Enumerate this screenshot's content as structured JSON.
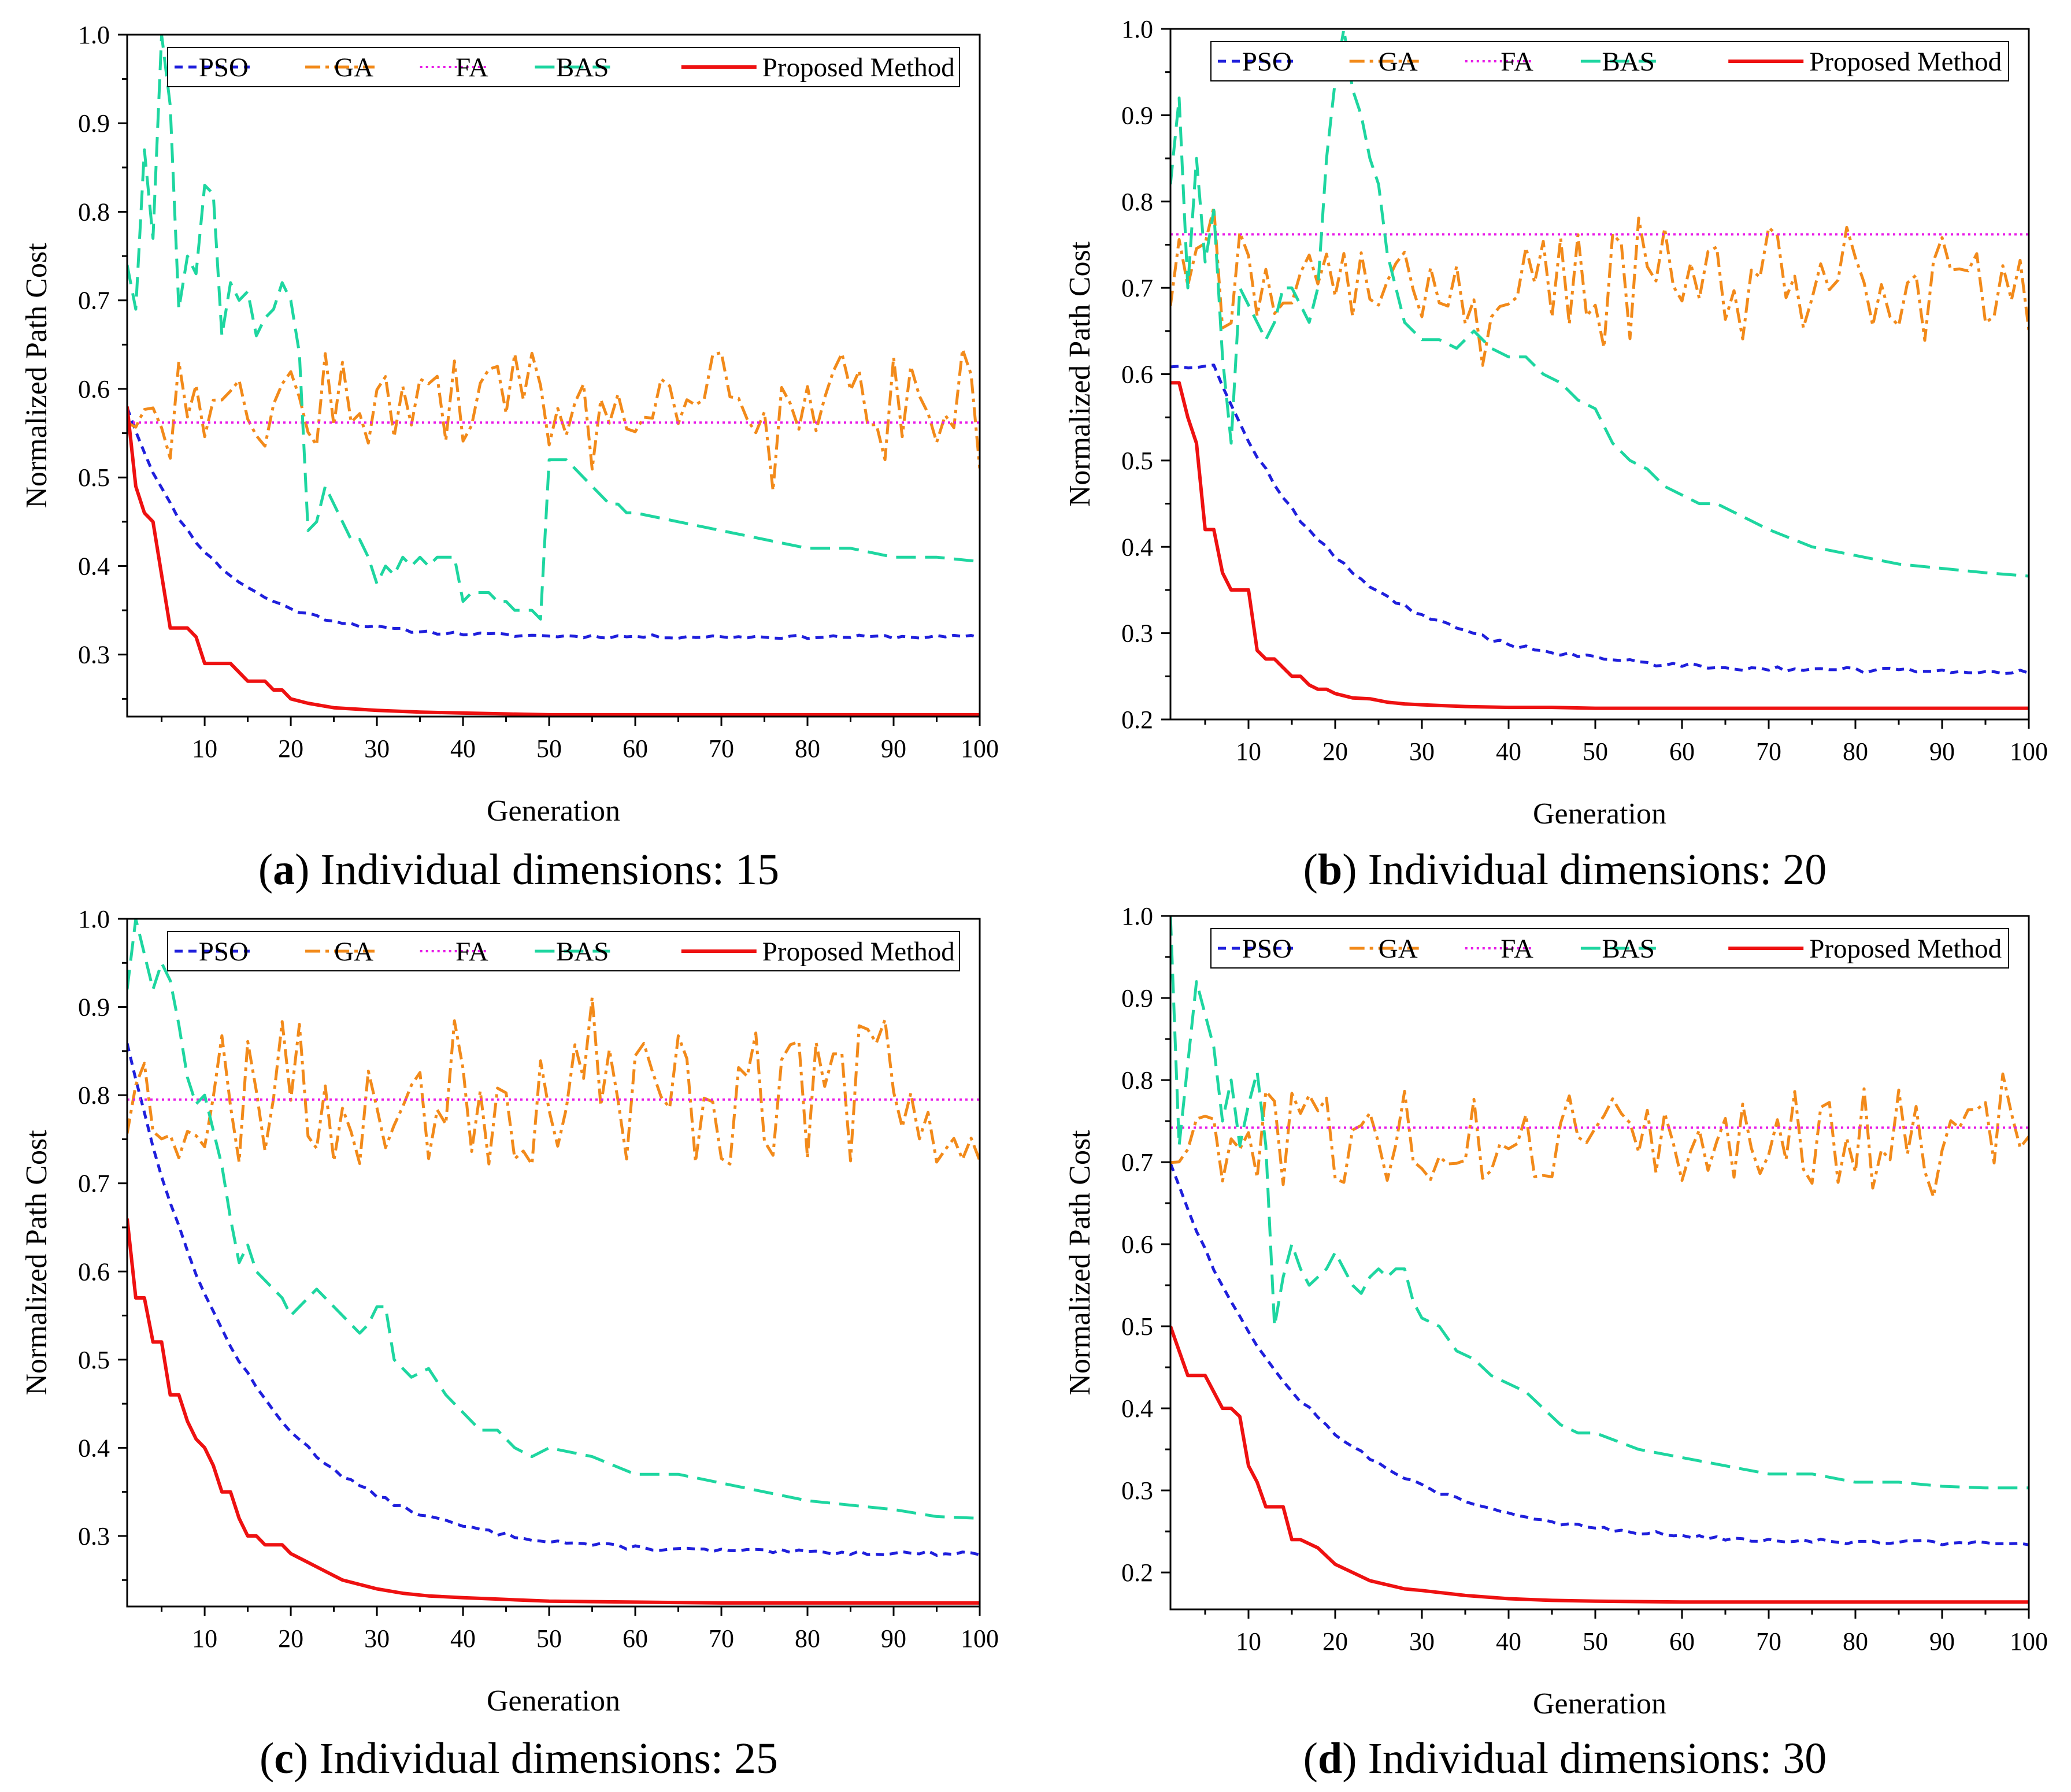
{
  "colors": {
    "PSO": "#1f1fdc",
    "GA": "#f28a1a",
    "FA": "#e81be8",
    "BAS": "#1ed6a0",
    "Proposed Method": "#ee1111"
  },
  "legend_labels": [
    "PSO",
    "GA",
    "FA",
    "BAS",
    "Proposed Method"
  ],
  "chart_data": [
    {
      "type": "line",
      "caption_letter": "a",
      "caption_text": "Individual dimensions: 15",
      "xlabel": "Generation",
      "ylabel": "Normalized Path Cost",
      "xlim": [
        1,
        100
      ],
      "ylim": [
        0.23,
        1.0
      ],
      "xticks": [
        10,
        20,
        30,
        40,
        50,
        60,
        70,
        80,
        90,
        100
      ],
      "yticks": [
        0.3,
        0.4,
        0.5,
        0.6,
        0.7,
        0.8,
        0.9,
        1.0
      ],
      "ytick_labels": [
        "0.3",
        "0.4",
        "0.5",
        "0.6",
        "0.7",
        "0.8",
        "0.9",
        "1.0"
      ],
      "series": [
        {
          "name": "PSO",
          "kind": "decay",
          "start": 0.58,
          "end": 0.32,
          "rate": 0.11,
          "noise": 0.004,
          "plateau": 0.0,
          "seed": 11
        },
        {
          "name": "GA",
          "kind": "noise",
          "mean": 0.59,
          "amp": 0.055,
          "seed": 21
        },
        {
          "name": "FA",
          "kind": "flat",
          "value": 0.562
        },
        {
          "name": "BAS",
          "kind": "points",
          "x": [
            1,
            2,
            3,
            4,
            5,
            6,
            7,
            8,
            9,
            10,
            11,
            12,
            13,
            14,
            15,
            16,
            17,
            18,
            19,
            20,
            21,
            22,
            23,
            24,
            25,
            26,
            27,
            28,
            29,
            30,
            31,
            32,
            33,
            34,
            35,
            36,
            37,
            38,
            39,
            40,
            41,
            42,
            43,
            44,
            45,
            46,
            47,
            48,
            49,
            50,
            51,
            52,
            53,
            54,
            55,
            56,
            57,
            58,
            59,
            60,
            65,
            70,
            75,
            80,
            85,
            90,
            95,
            100
          ],
          "y": [
            0.74,
            0.69,
            0.87,
            0.77,
            1.0,
            0.92,
            0.69,
            0.75,
            0.73,
            0.83,
            0.82,
            0.66,
            0.72,
            0.7,
            0.71,
            0.66,
            0.68,
            0.69,
            0.72,
            0.7,
            0.64,
            0.44,
            0.45,
            0.49,
            0.47,
            0.45,
            0.43,
            0.43,
            0.41,
            0.38,
            0.4,
            0.39,
            0.41,
            0.4,
            0.41,
            0.4,
            0.41,
            0.41,
            0.41,
            0.36,
            0.37,
            0.37,
            0.37,
            0.36,
            0.36,
            0.35,
            0.35,
            0.35,
            0.34,
            0.52,
            0.52,
            0.52,
            0.51,
            0.5,
            0.49,
            0.48,
            0.47,
            0.47,
            0.46,
            0.46,
            0.45,
            0.44,
            0.43,
            0.42,
            0.42,
            0.41,
            0.41,
            0.405
          ]
        },
        {
          "name": "Proposed Method",
          "kind": "points",
          "x": [
            1,
            2,
            3,
            4,
            5,
            6,
            7,
            8,
            9,
            10,
            11,
            12,
            13,
            14,
            15,
            16,
            17,
            18,
            19,
            20,
            22,
            25,
            30,
            35,
            40,
            45,
            50,
            60,
            70,
            80,
            90,
            100
          ],
          "y": [
            0.58,
            0.49,
            0.46,
            0.45,
            0.39,
            0.33,
            0.33,
            0.33,
            0.32,
            0.29,
            0.29,
            0.29,
            0.29,
            0.28,
            0.27,
            0.27,
            0.27,
            0.26,
            0.26,
            0.25,
            0.245,
            0.24,
            0.237,
            0.235,
            0.234,
            0.233,
            0.232,
            0.232,
            0.232,
            0.232,
            0.232,
            0.232
          ]
        }
      ]
    },
    {
      "type": "line",
      "caption_letter": "b",
      "caption_text": "Individual dimensions: 20",
      "xlabel": "Generation",
      "ylabel": "Normalized Path Cost",
      "xlim": [
        1,
        100
      ],
      "ylim": [
        0.2,
        1.0
      ],
      "xticks": [
        10,
        20,
        30,
        40,
        50,
        60,
        70,
        80,
        90,
        100
      ],
      "yticks": [
        0.2,
        0.3,
        0.4,
        0.5,
        0.6,
        0.7,
        0.8,
        0.9,
        1.0
      ],
      "ytick_labels": [
        "0.2",
        "0.3",
        "0.4",
        "0.5",
        "0.6",
        "0.7",
        "0.8",
        "0.9",
        "1.0"
      ],
      "series": [
        {
          "name": "PSO",
          "kind": "decay",
          "start": 0.61,
          "end": 0.255,
          "rate": 0.07,
          "noise": 0.006,
          "plateau": 5,
          "seed": 12
        },
        {
          "name": "GA",
          "kind": "noise",
          "mean": 0.71,
          "amp": 0.06,
          "seed": 22
        },
        {
          "name": "FA",
          "kind": "flat",
          "value": 0.762
        },
        {
          "name": "BAS",
          "kind": "points",
          "x": [
            1,
            2,
            3,
            4,
            5,
            6,
            7,
            8,
            9,
            10,
            11,
            12,
            13,
            14,
            15,
            16,
            17,
            18,
            19,
            20,
            21,
            22,
            23,
            24,
            25,
            26,
            27,
            28,
            30,
            32,
            34,
            36,
            38,
            40,
            42,
            44,
            46,
            48,
            50,
            52,
            54,
            56,
            58,
            60,
            62,
            64,
            66,
            68,
            70,
            75,
            80,
            85,
            90,
            95,
            100
          ],
          "y": [
            0.82,
            0.92,
            0.7,
            0.85,
            0.73,
            0.79,
            0.62,
            0.52,
            0.7,
            0.68,
            0.66,
            0.64,
            0.66,
            0.7,
            0.7,
            0.68,
            0.66,
            0.7,
            0.85,
            0.94,
            1.0,
            0.93,
            0.9,
            0.85,
            0.82,
            0.74,
            0.7,
            0.66,
            0.64,
            0.64,
            0.63,
            0.65,
            0.63,
            0.62,
            0.62,
            0.6,
            0.59,
            0.57,
            0.56,
            0.52,
            0.5,
            0.49,
            0.47,
            0.46,
            0.45,
            0.45,
            0.44,
            0.43,
            0.42,
            0.4,
            0.39,
            0.38,
            0.375,
            0.37,
            0.366
          ]
        },
        {
          "name": "Proposed Method",
          "kind": "points",
          "x": [
            1,
            2,
            3,
            4,
            5,
            6,
            7,
            8,
            9,
            10,
            11,
            12,
            13,
            14,
            15,
            16,
            17,
            18,
            19,
            20,
            22,
            24,
            26,
            28,
            30,
            35,
            40,
            45,
            50,
            60,
            70,
            80,
            90,
            100
          ],
          "y": [
            0.59,
            0.59,
            0.55,
            0.52,
            0.42,
            0.42,
            0.37,
            0.35,
            0.35,
            0.35,
            0.28,
            0.27,
            0.27,
            0.26,
            0.25,
            0.25,
            0.24,
            0.235,
            0.235,
            0.23,
            0.225,
            0.224,
            0.22,
            0.218,
            0.217,
            0.215,
            0.214,
            0.214,
            0.213,
            0.213,
            0.213,
            0.213,
            0.213,
            0.213
          ]
        }
      ]
    },
    {
      "type": "line",
      "caption_letter": "c",
      "caption_text": "Individual dimensions: 25",
      "xlabel": "Generation",
      "ylabel": "Normalized Path Cost",
      "xlim": [
        1,
        100
      ],
      "ylim": [
        0.22,
        1.0
      ],
      "xticks": [
        10,
        20,
        30,
        40,
        50,
        60,
        70,
        80,
        90,
        100
      ],
      "yticks": [
        0.3,
        0.4,
        0.5,
        0.6,
        0.7,
        0.8,
        0.9,
        1.0
      ],
      "ytick_labels": [
        "0.3",
        "0.4",
        "0.5",
        "0.6",
        "0.7",
        "0.8",
        "0.9",
        "1.0"
      ],
      "series": [
        {
          "name": "PSO",
          "kind": "decay",
          "start": 0.86,
          "end": 0.28,
          "rate": 0.075,
          "noise": 0.005,
          "plateau": 0.0,
          "seed": 13
        },
        {
          "name": "GA",
          "kind": "noise",
          "mean": 0.8,
          "amp": 0.085,
          "seed": 23
        },
        {
          "name": "FA",
          "kind": "flat",
          "value": 0.795
        },
        {
          "name": "BAS",
          "kind": "points",
          "x": [
            1,
            2,
            3,
            4,
            5,
            6,
            7,
            8,
            9,
            10,
            11,
            12,
            13,
            14,
            15,
            16,
            17,
            18,
            19,
            20,
            21,
            22,
            23,
            24,
            25,
            26,
            27,
            28,
            29,
            30,
            31,
            32,
            34,
            36,
            38,
            40,
            42,
            44,
            46,
            48,
            50,
            55,
            60,
            65,
            70,
            75,
            80,
            85,
            90,
            95,
            100
          ],
          "y": [
            0.92,
            1.0,
            0.96,
            0.92,
            0.95,
            0.93,
            0.88,
            0.82,
            0.79,
            0.8,
            0.76,
            0.72,
            0.66,
            0.61,
            0.63,
            0.6,
            0.59,
            0.58,
            0.57,
            0.55,
            0.56,
            0.57,
            0.58,
            0.57,
            0.56,
            0.55,
            0.54,
            0.53,
            0.54,
            0.56,
            0.56,
            0.5,
            0.48,
            0.49,
            0.46,
            0.44,
            0.42,
            0.42,
            0.4,
            0.39,
            0.4,
            0.39,
            0.37,
            0.37,
            0.36,
            0.35,
            0.34,
            0.335,
            0.33,
            0.322,
            0.32
          ]
        },
        {
          "name": "Proposed Method",
          "kind": "points",
          "x": [
            1,
            2,
            3,
            4,
            5,
            6,
            7,
            8,
            9,
            10,
            11,
            12,
            13,
            14,
            15,
            16,
            17,
            18,
            19,
            20,
            22,
            24,
            26,
            28,
            30,
            33,
            36,
            40,
            45,
            50,
            60,
            70,
            80,
            90,
            100
          ],
          "y": [
            0.66,
            0.57,
            0.57,
            0.52,
            0.52,
            0.46,
            0.46,
            0.43,
            0.41,
            0.4,
            0.38,
            0.35,
            0.35,
            0.32,
            0.3,
            0.3,
            0.29,
            0.29,
            0.29,
            0.28,
            0.27,
            0.26,
            0.25,
            0.245,
            0.24,
            0.235,
            0.232,
            0.23,
            0.228,
            0.226,
            0.225,
            0.224,
            0.224,
            0.224,
            0.224
          ]
        }
      ]
    },
    {
      "type": "line",
      "caption_letter": "d",
      "caption_text": "Individual dimensions: 30",
      "xlabel": "Generation",
      "ylabel": "Normalized Path Cost",
      "xlim": [
        1,
        100
      ],
      "ylim": [
        0.155,
        1.0
      ],
      "xticks": [
        10,
        20,
        30,
        40,
        50,
        60,
        70,
        80,
        90,
        100
      ],
      "yticks": [
        0.2,
        0.3,
        0.4,
        0.5,
        0.6,
        0.7,
        0.8,
        0.9,
        1.0
      ],
      "ytick_labels": [
        "0.2",
        "0.3",
        "0.4",
        "0.5",
        "0.6",
        "0.7",
        "0.8",
        "0.9",
        "1.0"
      ],
      "series": [
        {
          "name": "PSO",
          "kind": "decay",
          "start": 0.7,
          "end": 0.235,
          "rate": 0.065,
          "noise": 0.006,
          "plateau": 0.0,
          "seed": 14
        },
        {
          "name": "GA",
          "kind": "noise",
          "mean": 0.73,
          "amp": 0.06,
          "seed": 24
        },
        {
          "name": "FA",
          "kind": "flat",
          "value": 0.742
        },
        {
          "name": "BAS",
          "kind": "points",
          "x": [
            1,
            2,
            3,
            4,
            5,
            6,
            7,
            8,
            9,
            10,
            11,
            12,
            13,
            14,
            15,
            16,
            17,
            18,
            19,
            20,
            21,
            22,
            23,
            24,
            25,
            26,
            27,
            28,
            29,
            30,
            32,
            34,
            36,
            38,
            40,
            42,
            44,
            46,
            48,
            50,
            55,
            60,
            65,
            70,
            75,
            80,
            85,
            90,
            95,
            100
          ],
          "y": [
            1.0,
            0.72,
            0.82,
            0.92,
            0.88,
            0.84,
            0.75,
            0.8,
            0.72,
            0.77,
            0.81,
            0.72,
            0.5,
            0.56,
            0.6,
            0.57,
            0.55,
            0.56,
            0.57,
            0.59,
            0.57,
            0.55,
            0.54,
            0.56,
            0.57,
            0.56,
            0.57,
            0.57,
            0.53,
            0.51,
            0.5,
            0.47,
            0.46,
            0.44,
            0.43,
            0.42,
            0.4,
            0.38,
            0.37,
            0.37,
            0.35,
            0.34,
            0.33,
            0.32,
            0.32,
            0.31,
            0.31,
            0.305,
            0.303,
            0.303
          ]
        },
        {
          "name": "Proposed Method",
          "kind": "points",
          "x": [
            1,
            2,
            3,
            4,
            5,
            6,
            7,
            8,
            9,
            10,
            11,
            12,
            13,
            14,
            15,
            16,
            17,
            18,
            19,
            20,
            22,
            24,
            26,
            28,
            30,
            35,
            40,
            45,
            50,
            60,
            70,
            80,
            90,
            100
          ],
          "y": [
            0.5,
            0.47,
            0.44,
            0.44,
            0.44,
            0.42,
            0.4,
            0.4,
            0.39,
            0.33,
            0.31,
            0.28,
            0.28,
            0.28,
            0.24,
            0.24,
            0.235,
            0.23,
            0.22,
            0.21,
            0.2,
            0.19,
            0.185,
            0.18,
            0.178,
            0.172,
            0.168,
            0.166,
            0.165,
            0.164,
            0.164,
            0.164,
            0.164,
            0.164
          ]
        }
      ]
    }
  ]
}
